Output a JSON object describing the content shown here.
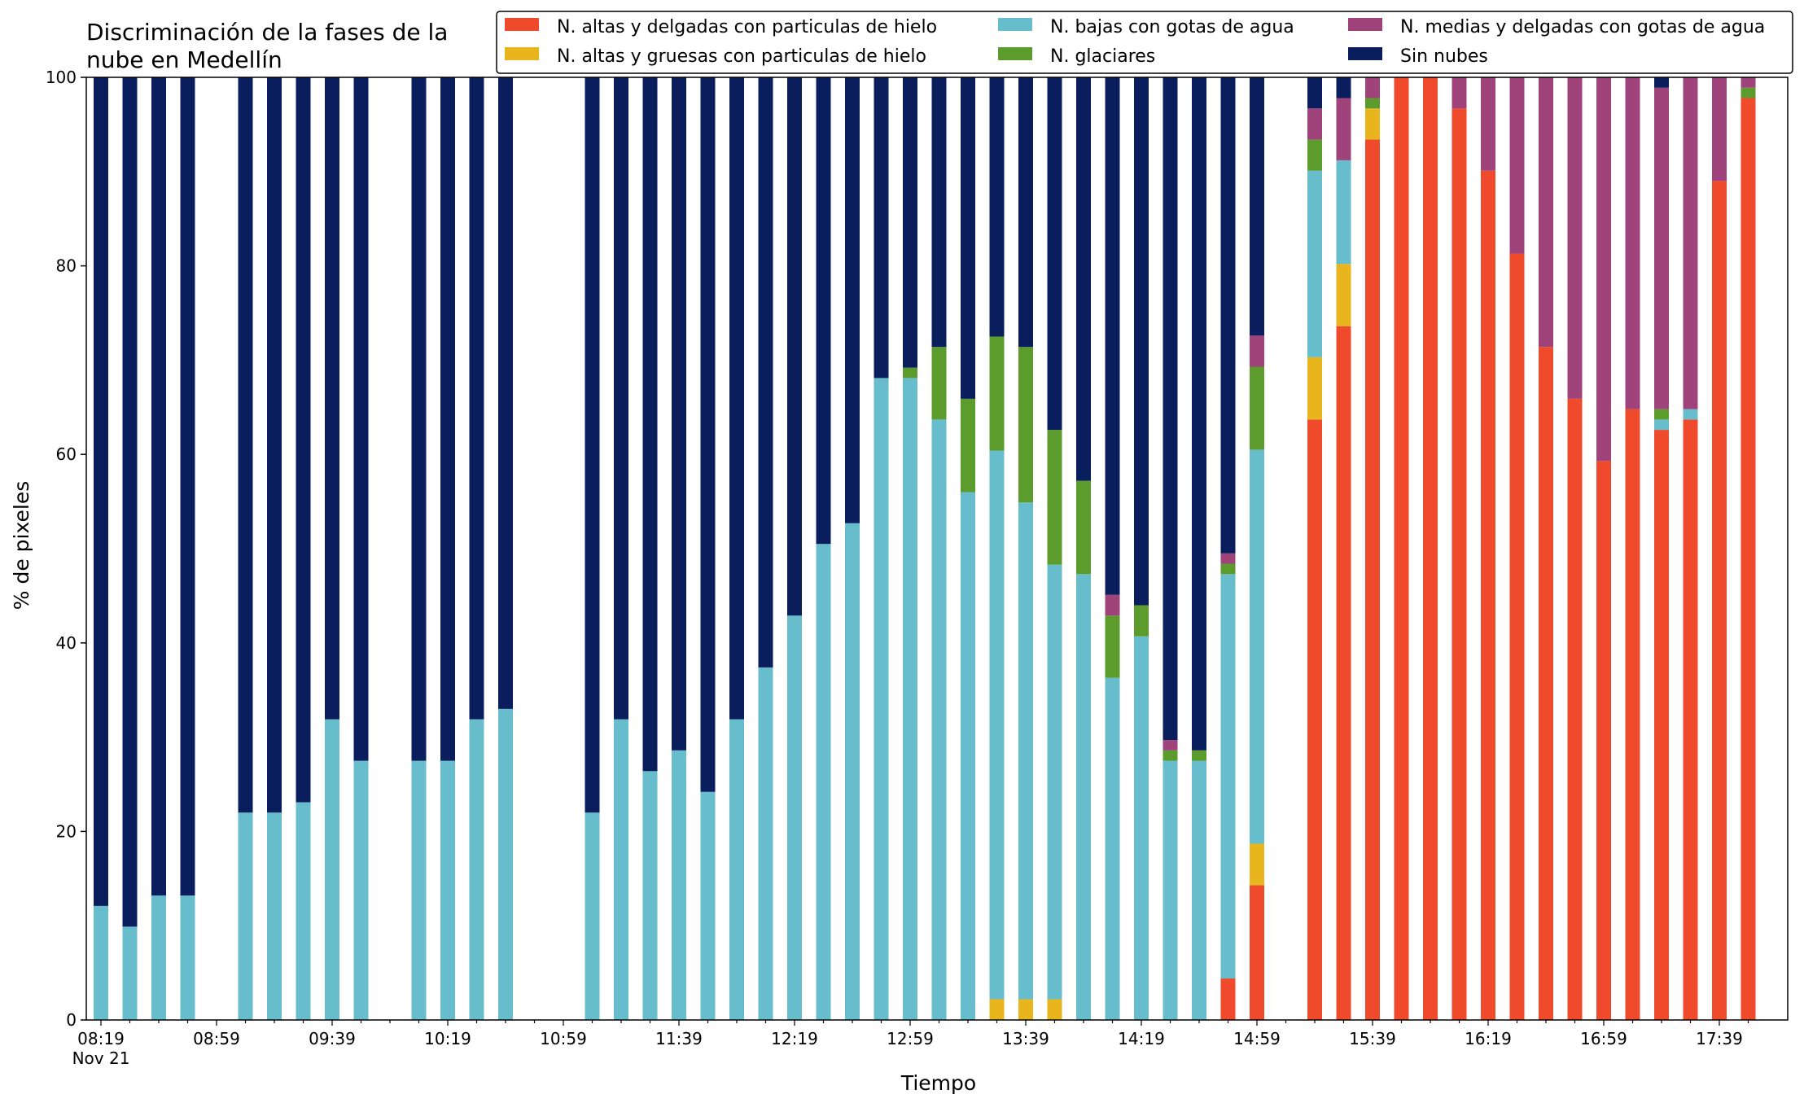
{
  "chart_data": {
    "type": "bar",
    "stacked": true,
    "title_lines": [
      "Discriminación de la fases de la",
      "nube en Medellín"
    ],
    "xlabel": "Tiempo",
    "ylabel": "% de pixeles",
    "ylim": [
      0,
      100
    ],
    "yticks": [
      0,
      20,
      40,
      60,
      80,
      100
    ],
    "grid": false,
    "legend_position": "top-right",
    "x_tick_labels": [
      "08:19",
      "08:59",
      "09:39",
      "10:19",
      "10:59",
      "11:39",
      "12:19",
      "12:59",
      "13:39",
      "14:19",
      "14:59",
      "15:39",
      "16:19",
      "16:59",
      "17:39"
    ],
    "x_date_label": "Nov 21",
    "x_slots": 58,
    "series": [
      {
        "name": "N. altas y delgadas con particulas de hielo",
        "color": "#EE4A2B"
      },
      {
        "name": "N. altas y gruesas con particulas de hielo",
        "color": "#E8B51C"
      },
      {
        "name": "N. bajas con gotas de agua",
        "color": "#67BDCB"
      },
      {
        "name": "N. glaciares",
        "color": "#5C9C2C"
      },
      {
        "name": "N. medias y delgadas con gotas de agua",
        "color": "#A0437B"
      },
      {
        "name": "Sin nubes",
        "color": "#0A1E5E"
      }
    ],
    "bars": [
      {
        "slot": 0,
        "values": [
          0,
          0,
          12.1,
          0,
          0,
          87.9
        ]
      },
      {
        "slot": 1,
        "values": [
          0,
          0,
          9.9,
          0,
          0,
          90.1
        ]
      },
      {
        "slot": 2,
        "values": [
          0,
          0,
          13.2,
          0,
          0,
          86.8
        ]
      },
      {
        "slot": 3,
        "values": [
          0,
          0,
          13.2,
          0,
          0,
          86.8
        ]
      },
      {
        "slot": 5,
        "values": [
          0,
          0,
          22.0,
          0,
          0,
          78.0
        ]
      },
      {
        "slot": 6,
        "values": [
          0,
          0,
          22.0,
          0,
          0,
          78.0
        ]
      },
      {
        "slot": 7,
        "values": [
          0,
          0,
          23.1,
          0,
          0,
          76.9
        ]
      },
      {
        "slot": 8,
        "values": [
          0,
          0,
          31.9,
          0,
          0,
          68.1
        ]
      },
      {
        "slot": 9,
        "values": [
          0,
          0,
          27.5,
          0,
          0,
          72.5
        ]
      },
      {
        "slot": 11,
        "values": [
          0,
          0,
          27.5,
          0,
          0,
          72.5
        ]
      },
      {
        "slot": 12,
        "values": [
          0,
          0,
          27.5,
          0,
          0,
          72.5
        ]
      },
      {
        "slot": 13,
        "values": [
          0,
          0,
          31.9,
          0,
          0,
          68.1
        ]
      },
      {
        "slot": 14,
        "values": [
          0,
          0,
          33.0,
          0,
          0,
          67.0
        ]
      },
      {
        "slot": 17,
        "values": [
          0,
          0,
          22.0,
          0,
          0,
          78.0
        ]
      },
      {
        "slot": 18,
        "values": [
          0,
          0,
          31.9,
          0,
          0,
          68.1
        ]
      },
      {
        "slot": 19,
        "values": [
          0,
          0,
          26.4,
          0,
          0,
          73.6
        ]
      },
      {
        "slot": 20,
        "values": [
          0,
          0,
          28.6,
          0,
          0,
          71.4
        ]
      },
      {
        "slot": 21,
        "values": [
          0,
          0,
          24.2,
          0,
          0,
          75.8
        ]
      },
      {
        "slot": 22,
        "values": [
          0,
          0,
          31.9,
          0,
          0,
          68.1
        ]
      },
      {
        "slot": 23,
        "values": [
          0,
          0,
          37.4,
          0,
          0,
          62.6
        ]
      },
      {
        "slot": 24,
        "values": [
          0,
          0,
          42.9,
          0,
          0,
          57.1
        ]
      },
      {
        "slot": 25,
        "values": [
          0,
          0,
          50.5,
          0,
          0,
          49.5
        ]
      },
      {
        "slot": 26,
        "values": [
          0,
          0,
          52.7,
          0,
          0,
          47.3
        ]
      },
      {
        "slot": 27,
        "values": [
          0,
          0,
          68.1,
          0,
          0,
          31.9
        ]
      },
      {
        "slot": 28,
        "values": [
          0,
          0,
          68.1,
          1.1,
          0,
          30.8
        ]
      },
      {
        "slot": 29,
        "values": [
          0,
          0,
          63.7,
          7.7,
          0,
          28.6
        ]
      },
      {
        "slot": 30,
        "values": [
          0,
          0,
          56.0,
          9.9,
          0,
          34.1
        ]
      },
      {
        "slot": 31,
        "values": [
          0,
          2.2,
          58.2,
          12.1,
          0,
          27.5
        ]
      },
      {
        "slot": 32,
        "values": [
          0,
          2.2,
          52.7,
          16.5,
          0,
          28.6
        ]
      },
      {
        "slot": 33,
        "values": [
          0,
          2.2,
          46.1,
          14.3,
          0,
          37.4
        ]
      },
      {
        "slot": 34,
        "values": [
          0,
          0,
          47.3,
          9.9,
          0,
          42.8
        ]
      },
      {
        "slot": 35,
        "values": [
          0,
          0,
          36.3,
          6.6,
          2.2,
          54.9
        ]
      },
      {
        "slot": 36,
        "values": [
          0,
          0,
          40.7,
          3.3,
          0,
          56.0
        ]
      },
      {
        "slot": 37,
        "values": [
          0,
          0,
          27.5,
          1.1,
          1.1,
          70.3
        ]
      },
      {
        "slot": 38,
        "values": [
          0,
          0,
          27.5,
          1.1,
          0,
          71.4
        ]
      },
      {
        "slot": 39,
        "values": [
          4.4,
          0,
          42.9,
          1.1,
          1.1,
          50.5
        ]
      },
      {
        "slot": 40,
        "values": [
          14.3,
          4.4,
          41.8,
          8.8,
          3.3,
          27.4
        ]
      },
      {
        "slot": 42,
        "values": [
          63.7,
          6.6,
          19.8,
          3.3,
          3.3,
          3.3
        ]
      },
      {
        "slot": 43,
        "values": [
          73.6,
          6.6,
          11.0,
          0,
          6.6,
          2.2
        ]
      },
      {
        "slot": 44,
        "values": [
          93.4,
          3.3,
          0,
          1.1,
          2.2,
          0
        ]
      },
      {
        "slot": 45,
        "values": [
          100,
          0,
          0,
          0,
          0,
          0
        ]
      },
      {
        "slot": 46,
        "values": [
          100,
          0,
          0,
          0,
          0,
          0
        ]
      },
      {
        "slot": 47,
        "values": [
          96.7,
          0,
          0,
          0,
          3.3,
          0
        ]
      },
      {
        "slot": 48,
        "values": [
          90.1,
          0,
          0,
          0,
          9.9,
          0
        ]
      },
      {
        "slot": 49,
        "values": [
          81.3,
          0,
          0,
          0,
          18.7,
          0
        ]
      },
      {
        "slot": 50,
        "values": [
          71.4,
          0,
          0,
          0,
          28.6,
          0
        ]
      },
      {
        "slot": 51,
        "values": [
          65.9,
          0,
          0,
          0,
          34.1,
          0
        ]
      },
      {
        "slot": 52,
        "values": [
          59.3,
          0,
          0,
          0,
          40.7,
          0
        ]
      },
      {
        "slot": 53,
        "values": [
          64.8,
          0,
          0,
          0,
          35.2,
          0
        ]
      },
      {
        "slot": 54,
        "values": [
          62.6,
          0,
          1.1,
          1.1,
          34.1,
          1.1
        ]
      },
      {
        "slot": 55,
        "values": [
          63.7,
          0,
          1.1,
          0,
          35.2,
          0
        ]
      },
      {
        "slot": 56,
        "values": [
          89.0,
          0,
          0,
          0,
          11.0,
          0
        ]
      },
      {
        "slot": 57,
        "values": [
          97.8,
          0,
          0,
          1.1,
          1.1,
          0
        ]
      }
    ]
  }
}
